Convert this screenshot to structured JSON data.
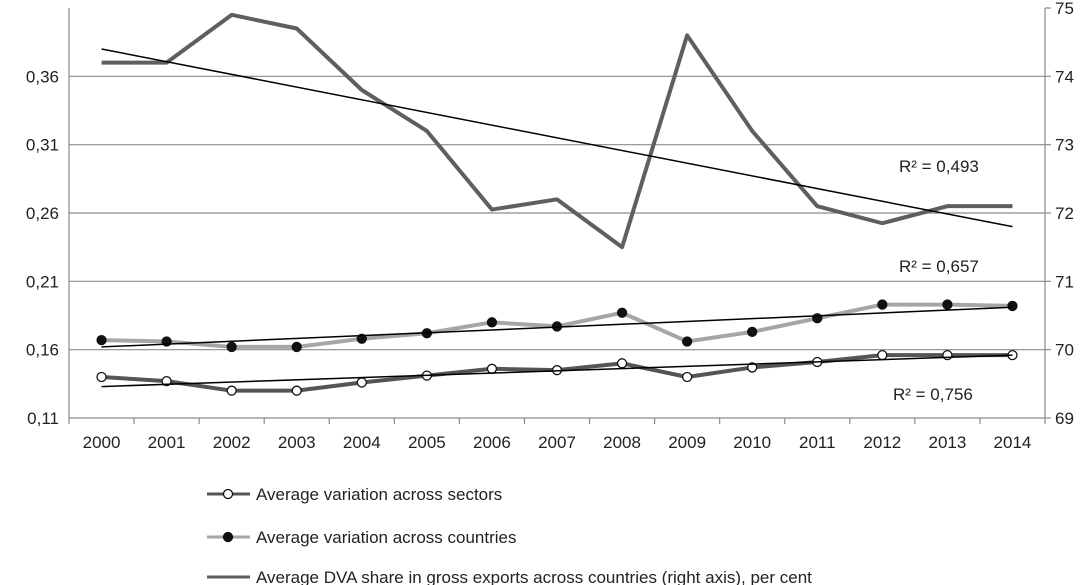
{
  "chart_data": {
    "type": "line",
    "categories": [
      "2000",
      "2001",
      "2002",
      "2003",
      "2004",
      "2005",
      "2006",
      "2007",
      "2008",
      "2009",
      "2010",
      "2011",
      "2012",
      "2013",
      "2014"
    ],
    "left_axis": {
      "min": 0.11,
      "max": 0.41,
      "ticks": [
        "0,11",
        "0,16",
        "0,21",
        "0,26",
        "0,31",
        "0,36"
      ],
      "tick_values": [
        0.11,
        0.16,
        0.21,
        0.26,
        0.31,
        0.36
      ]
    },
    "right_axis": {
      "min": 69,
      "max": 75,
      "ticks": [
        "69",
        "70",
        "71",
        "72",
        "73",
        "74",
        "75"
      ],
      "tick_values": [
        69,
        70,
        71,
        72,
        73,
        74,
        75
      ]
    },
    "grid": true,
    "legend_position": "bottom",
    "series": [
      {
        "name": "Average variation across sectors",
        "axis": "left",
        "color": "#555555",
        "marker": "open-circle",
        "values": [
          0.14,
          0.137,
          0.13,
          0.13,
          0.136,
          0.141,
          0.146,
          0.145,
          0.15,
          0.14,
          0.147,
          0.151,
          0.156,
          0.156,
          0.156
        ],
        "trend": {
          "start": 0.133,
          "end": 0.156,
          "r2_label": "R² = 0,756"
        }
      },
      {
        "name": "Average variation across countries",
        "axis": "left",
        "color": "#a6a6a6",
        "marker": "filled-circle",
        "values": [
          0.167,
          0.166,
          0.162,
          0.162,
          0.168,
          0.172,
          0.18,
          0.177,
          0.187,
          0.166,
          0.173,
          0.183,
          0.193,
          0.193,
          0.192
        ],
        "trend": {
          "start": 0.162,
          "end": 0.191,
          "r2_label": "R² = 0,657"
        }
      },
      {
        "name": "Average DVA share in gross exports across countries (right axis), per cent",
        "axis": "right",
        "color": "#5f5f5f",
        "marker": "none",
        "values": [
          74.2,
          74.2,
          74.9,
          74.7,
          73.8,
          73.2,
          72.05,
          72.2,
          71.5,
          74.6,
          73.2,
          72.1,
          71.85,
          72.1,
          72.1
        ],
        "trend": {
          "start": 74.4,
          "end": 71.8,
          "r2_label": "R² = 0,493"
        }
      }
    ]
  }
}
